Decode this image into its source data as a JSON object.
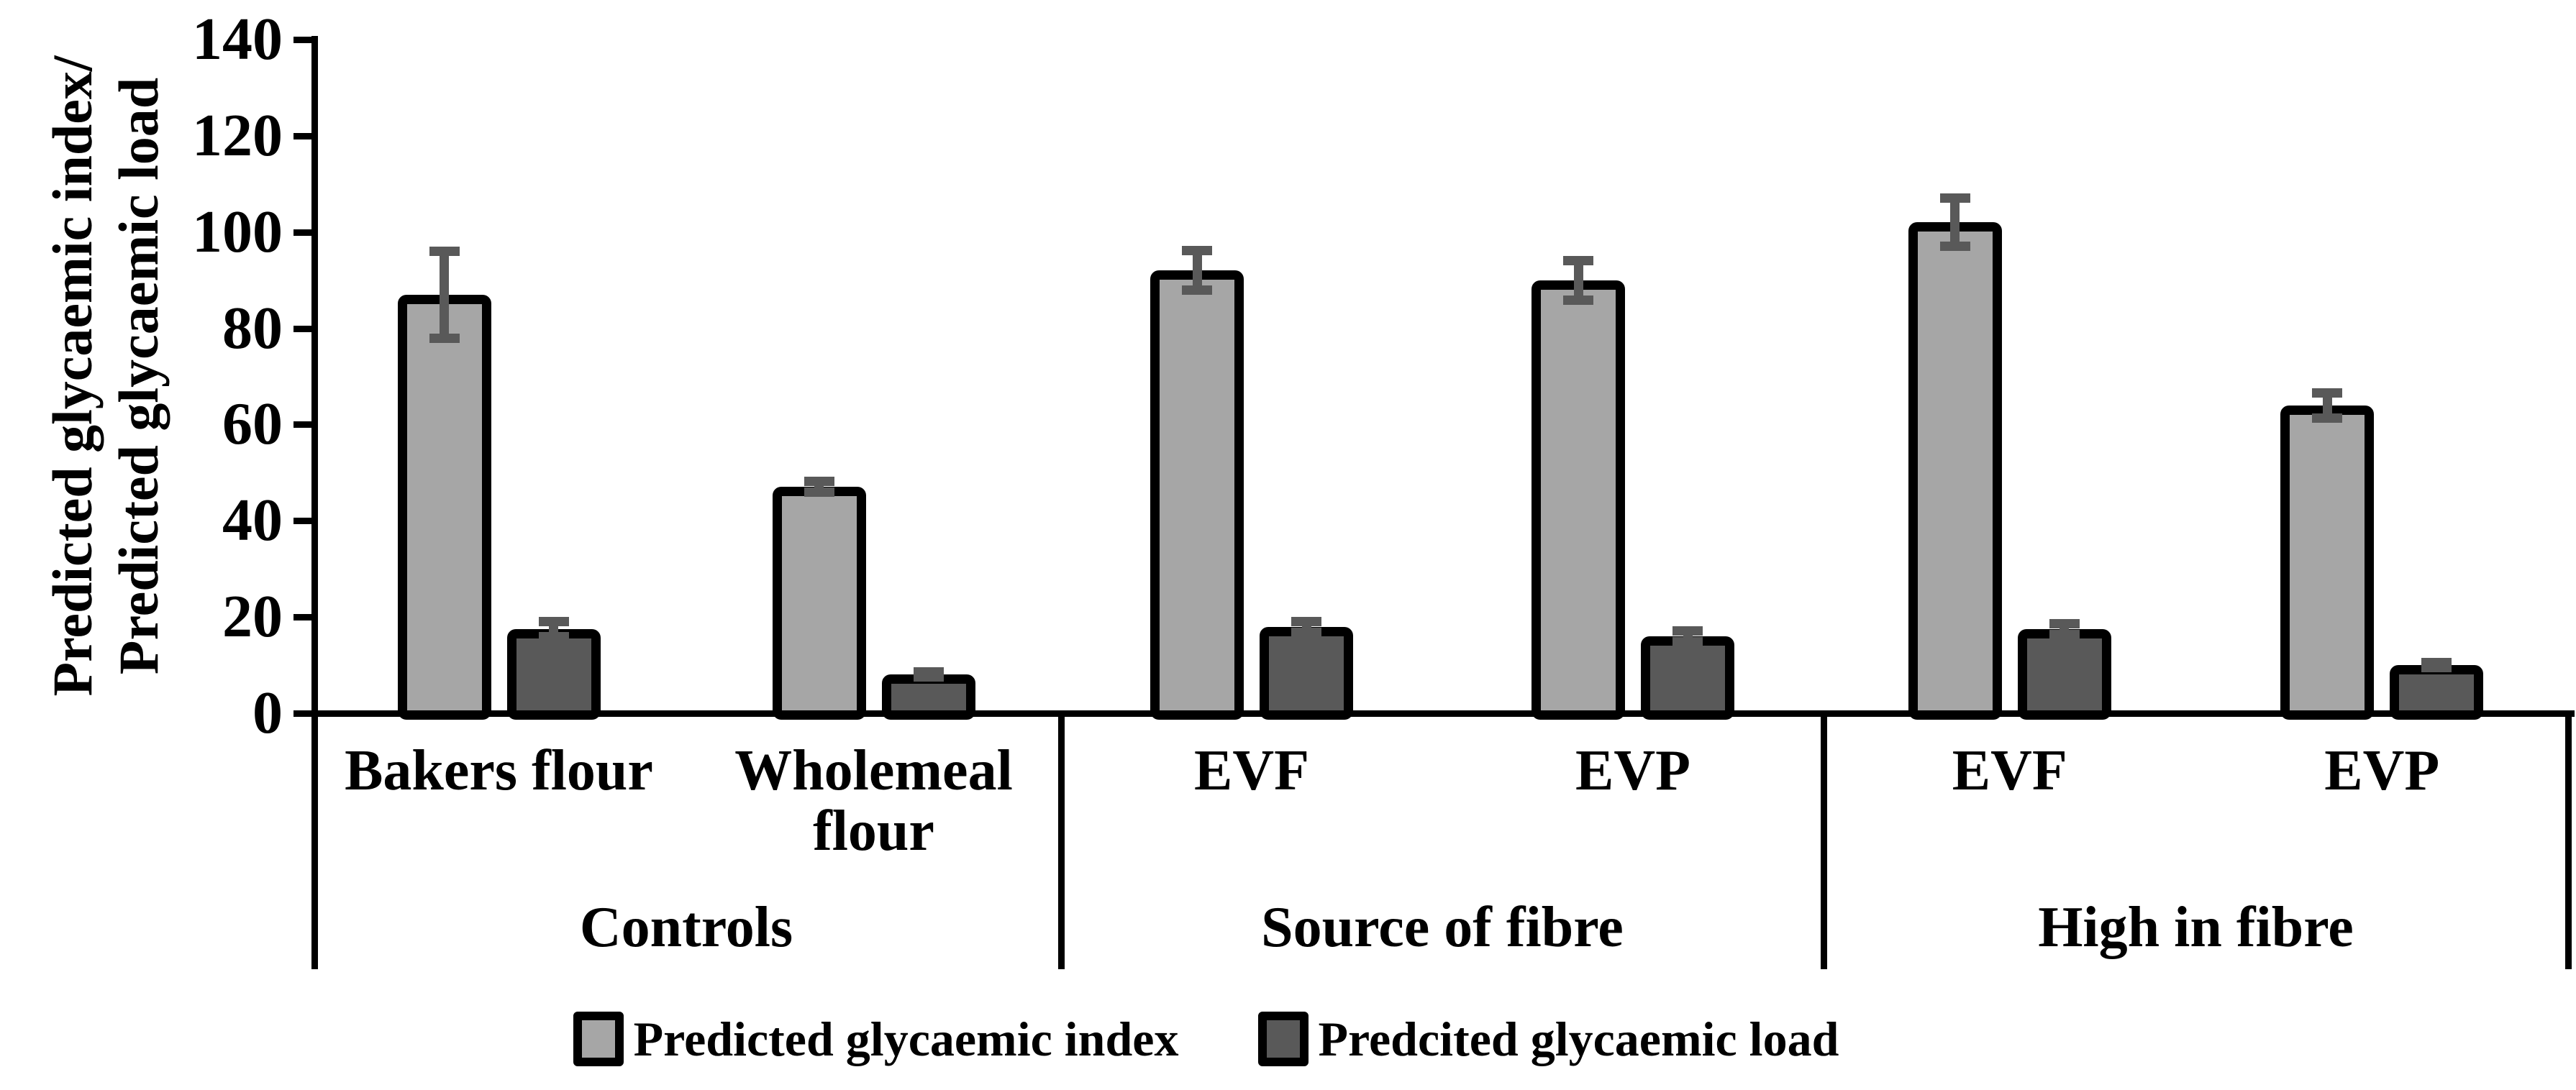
{
  "page": {
    "background": "#ffffff"
  },
  "colors": {
    "pgi_fill": "#a6a6a6",
    "pgl_fill": "#595959",
    "bar_border": "#000000",
    "error_bar": "#595959",
    "axis": "#000000",
    "text": "#000000"
  },
  "y_axis": {
    "title_line1": "Predicted glycaemic index/",
    "title_line2": "Predicted glycaemic load",
    "min": 0,
    "max": 140,
    "step": 20,
    "tick_labels": [
      "0",
      "20",
      "40",
      "60",
      "80",
      "100",
      "120",
      "140"
    ]
  },
  "legend": {
    "items": [
      {
        "key": "pgi",
        "label": "Predicted glycaemic index"
      },
      {
        "key": "pgl",
        "label": "Predcited glycaemic load"
      }
    ]
  },
  "chart_data": {
    "type": "bar",
    "title": "",
    "xlabel": "",
    "ylabel": "Predicted glycaemic index/ Predicted glycaemic load",
    "ylim": [
      0,
      140
    ],
    "grid": false,
    "legend_position": "bottom",
    "error_bars": true,
    "series_names": [
      "Predicted glycaemic index",
      "Predcited glycaemic load"
    ],
    "groups": [
      {
        "label": "Controls",
        "items": [
          {
            "category": "Bakers flour",
            "category_lines": [
              "Bakers flour"
            ],
            "pgi": 87,
            "pgi_err": 9,
            "pgl": 17.5,
            "pgl_err": 1.5
          },
          {
            "category": "Wholemeal flour",
            "category_lines": [
              "Wholemeal",
              "flour"
            ],
            "pgi": 47,
            "pgi_err": 1,
            "pgl": 8,
            "pgl_err": 0.5
          }
        ]
      },
      {
        "label": "Source of fibre",
        "items": [
          {
            "category": "EVF",
            "category_lines": [
              "EVF"
            ],
            "pgi": 92,
            "pgi_err": 4,
            "pgl": 18,
            "pgl_err": 1
          },
          {
            "category": "EVP",
            "category_lines": [
              "EVP"
            ],
            "pgi": 90,
            "pgi_err": 4,
            "pgl": 16,
            "pgl_err": 1
          }
        ]
      },
      {
        "label": "High in fibre",
        "items": [
          {
            "category": "EVF",
            "category_lines": [
              "EVF"
            ],
            "pgi": 102,
            "pgi_err": 5,
            "pgl": 17.5,
            "pgl_err": 1
          },
          {
            "category": "EVP",
            "category_lines": [
              "EVP"
            ],
            "pgi": 64,
            "pgi_err": 2.5,
            "pgl": 10,
            "pgl_err": 0.5
          }
        ]
      }
    ]
  }
}
